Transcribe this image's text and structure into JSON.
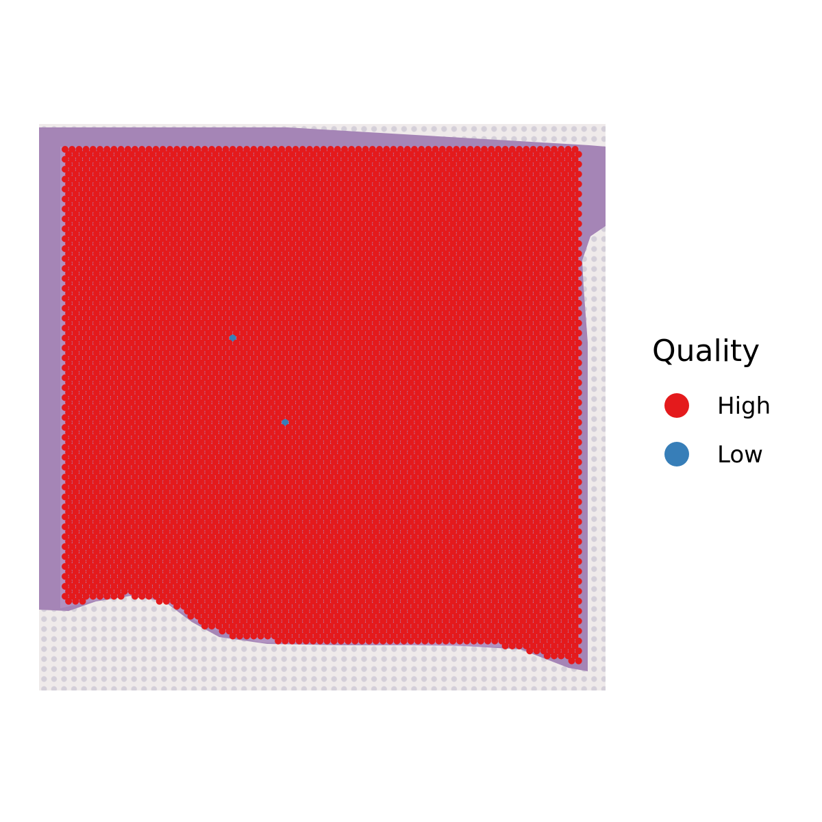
{
  "chart_data": {
    "type": "scatter",
    "title": "",
    "xlabel": "",
    "ylabel": "",
    "background": "tissue histology image (H&E) with fiducial spot grid",
    "colors": {
      "High": "#e41a1c",
      "Low": "#377eb8",
      "tissue": "#a07bb0",
      "slide": "#ece6e6"
    },
    "legend": {
      "title": "Quality",
      "position": "right",
      "entries": [
        {
          "label": "High",
          "color": "#e41a1c"
        },
        {
          "label": "Low",
          "color": "#377eb8"
        }
      ]
    },
    "series": [
      {
        "name": "High",
        "description": "nearly all spots in the hexagonal capture grid"
      },
      {
        "name": "Low",
        "points": [
          {
            "col": 24,
            "row": 38
          },
          {
            "col": 31,
            "row": 55
          }
        ]
      }
    ]
  }
}
